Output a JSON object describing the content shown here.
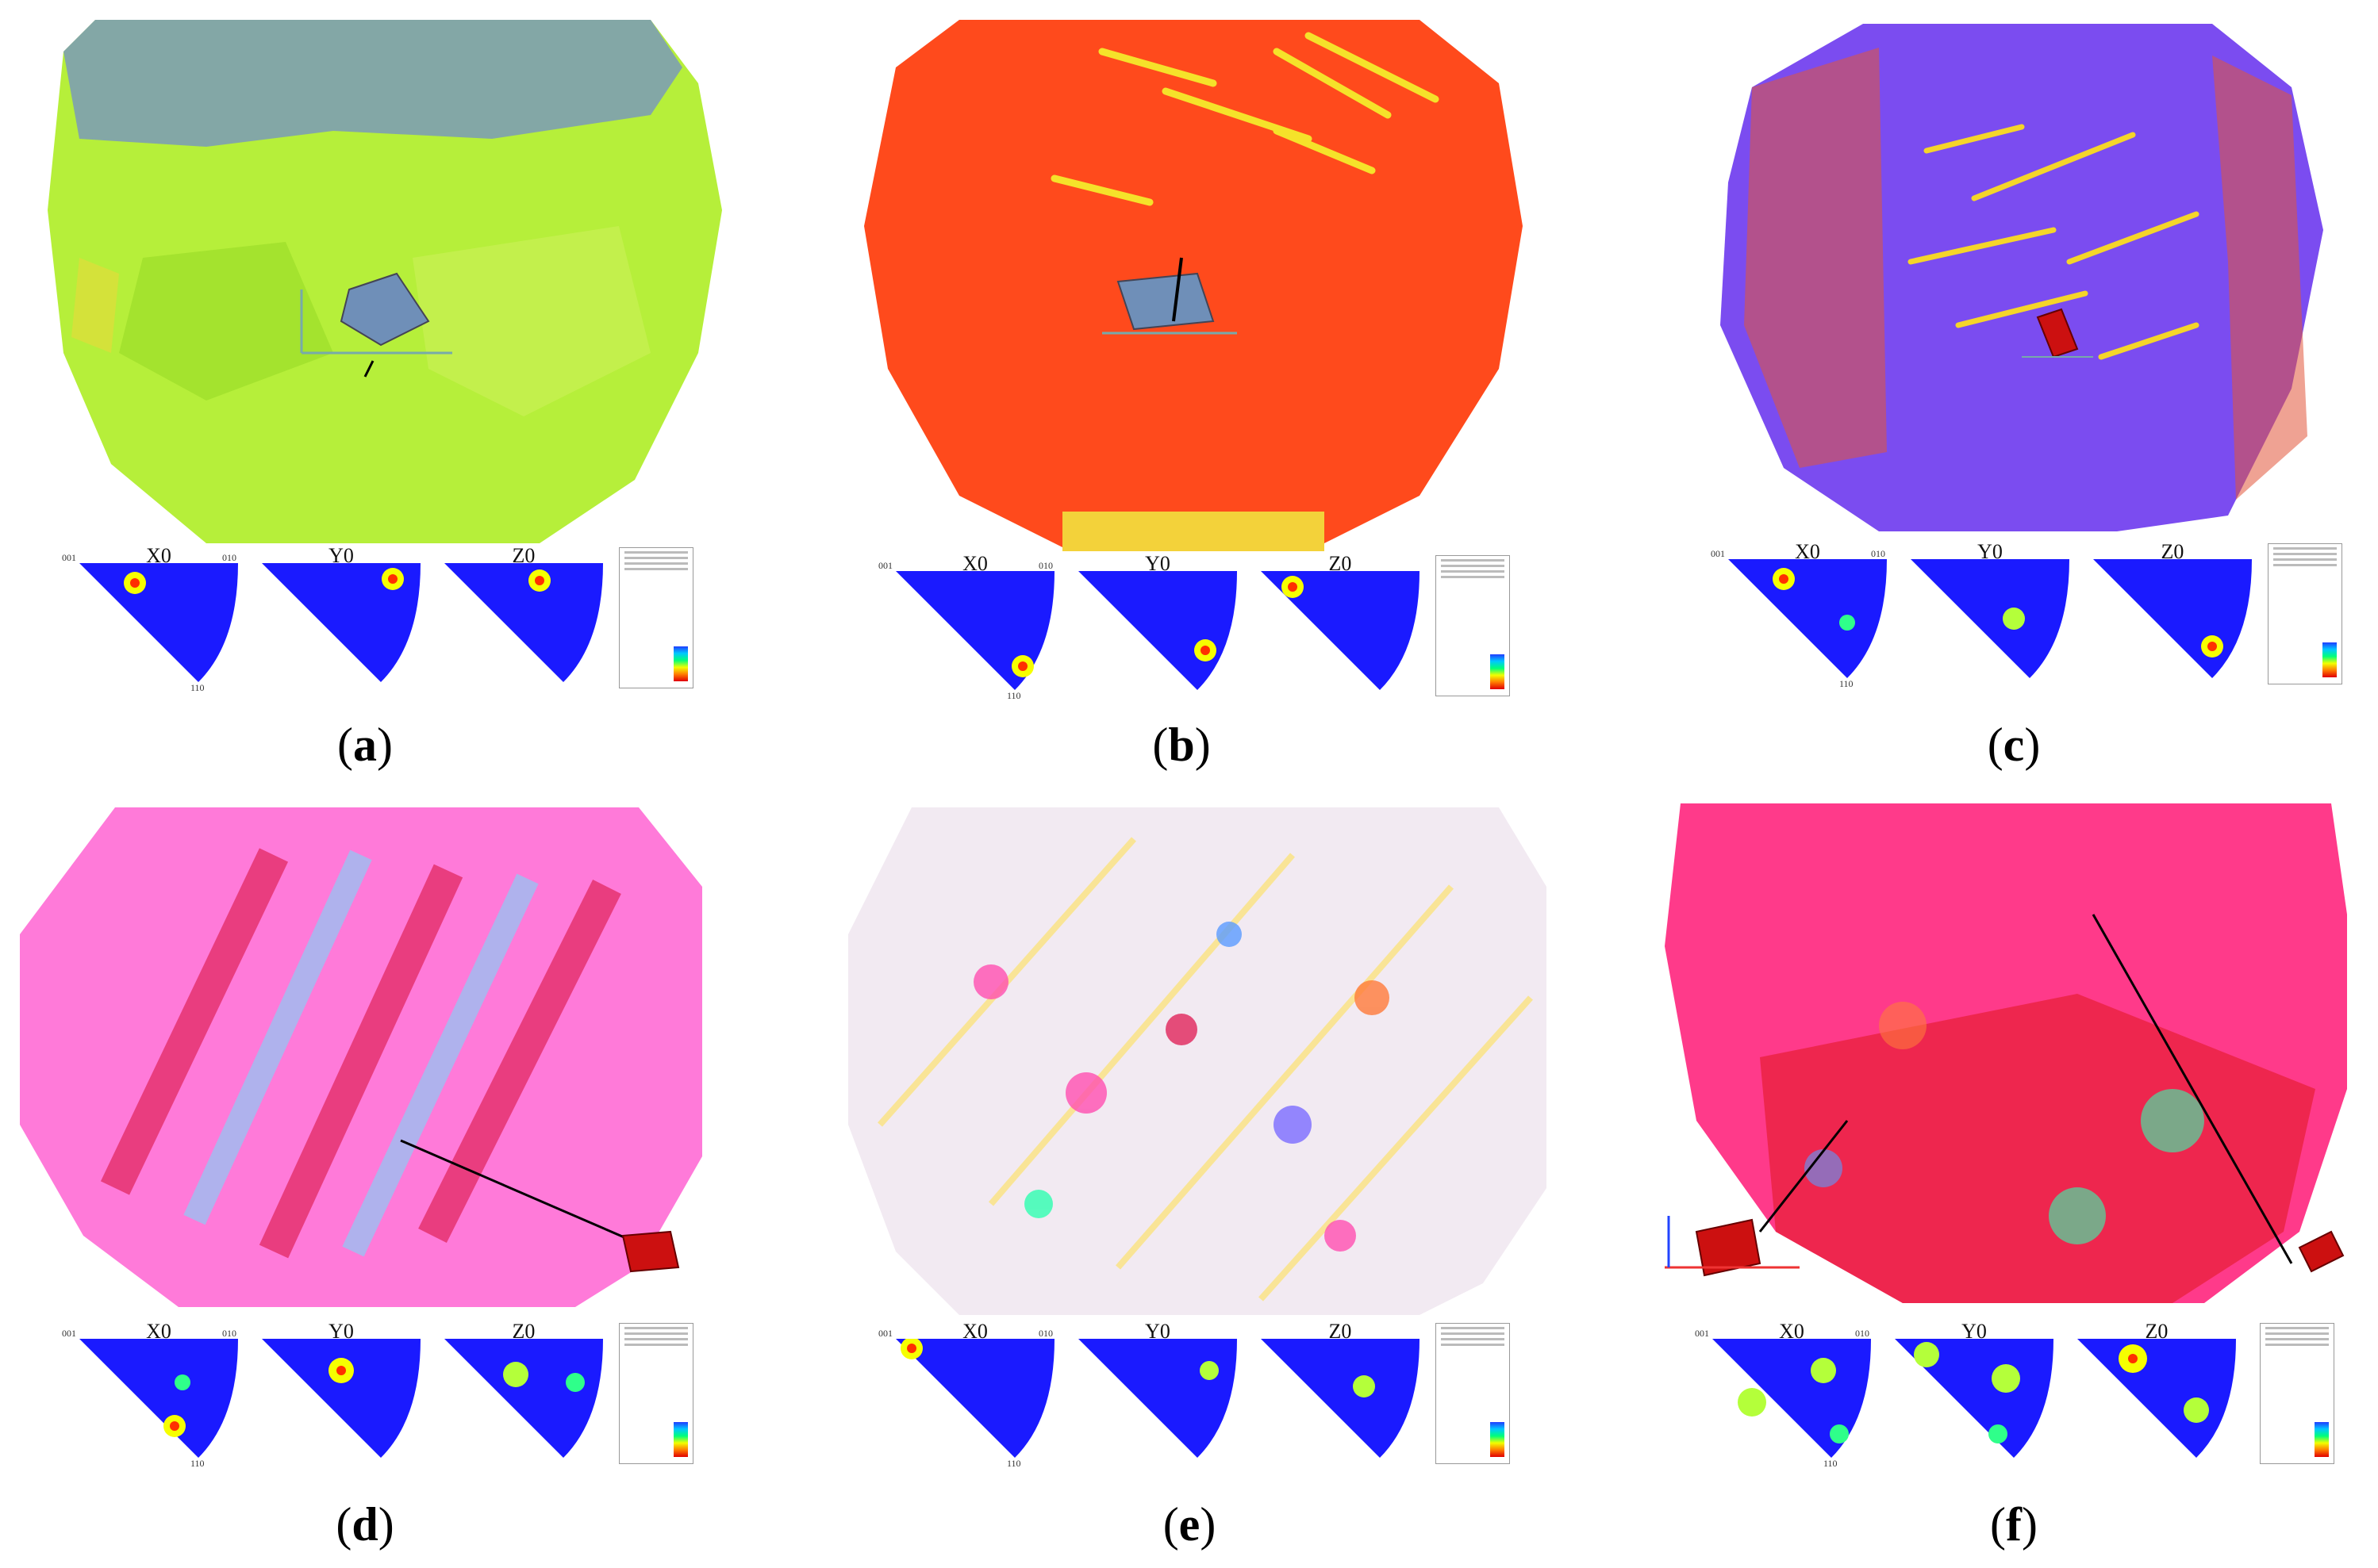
{
  "figure": {
    "panels": [
      {
        "id": "a",
        "caption_letter": "a",
        "ipf_labels": [
          "X0",
          "Y0",
          "Z0"
        ],
        "corner_labels": [
          "001",
          "010",
          "110"
        ]
      },
      {
        "id": "b",
        "caption_letter": "b",
        "ipf_labels": [
          "X0",
          "Y0",
          "Z0"
        ],
        "corner_labels": [
          "001",
          "010",
          "110"
        ]
      },
      {
        "id": "c",
        "caption_letter": "c",
        "ipf_labels": [
          "X0",
          "Y0",
          "Z0"
        ],
        "corner_labels": [
          "001",
          "010",
          "110"
        ]
      },
      {
        "id": "d",
        "caption_letter": "d",
        "ipf_labels": [
          "X0",
          "Y0",
          "Z0"
        ],
        "corner_labels": [
          "001",
          "010",
          "110"
        ]
      },
      {
        "id": "e",
        "caption_letter": "e",
        "ipf_labels": [
          "X0",
          "Y0",
          "Z0"
        ],
        "corner_labels": [
          "001",
          "010",
          "110"
        ]
      },
      {
        "id": "f",
        "caption_letter": "f",
        "ipf_labels": [
          "X0",
          "Y0",
          "Z0"
        ],
        "corner_labels": [
          "001",
          "010",
          "110"
        ]
      }
    ],
    "colors": {
      "ipf_background": "#1a1aff",
      "map_a_base": "#b8f03a",
      "map_b_base": "#ff4a1c",
      "map_c_base": "#7b4cf0",
      "map_d_base": "#ff7ad9",
      "map_e_base": "#f2eaf2",
      "map_f_base": "#ff3a8a",
      "cube_blue": "#6f8fb8",
      "cube_red": "#cc1010"
    }
  }
}
